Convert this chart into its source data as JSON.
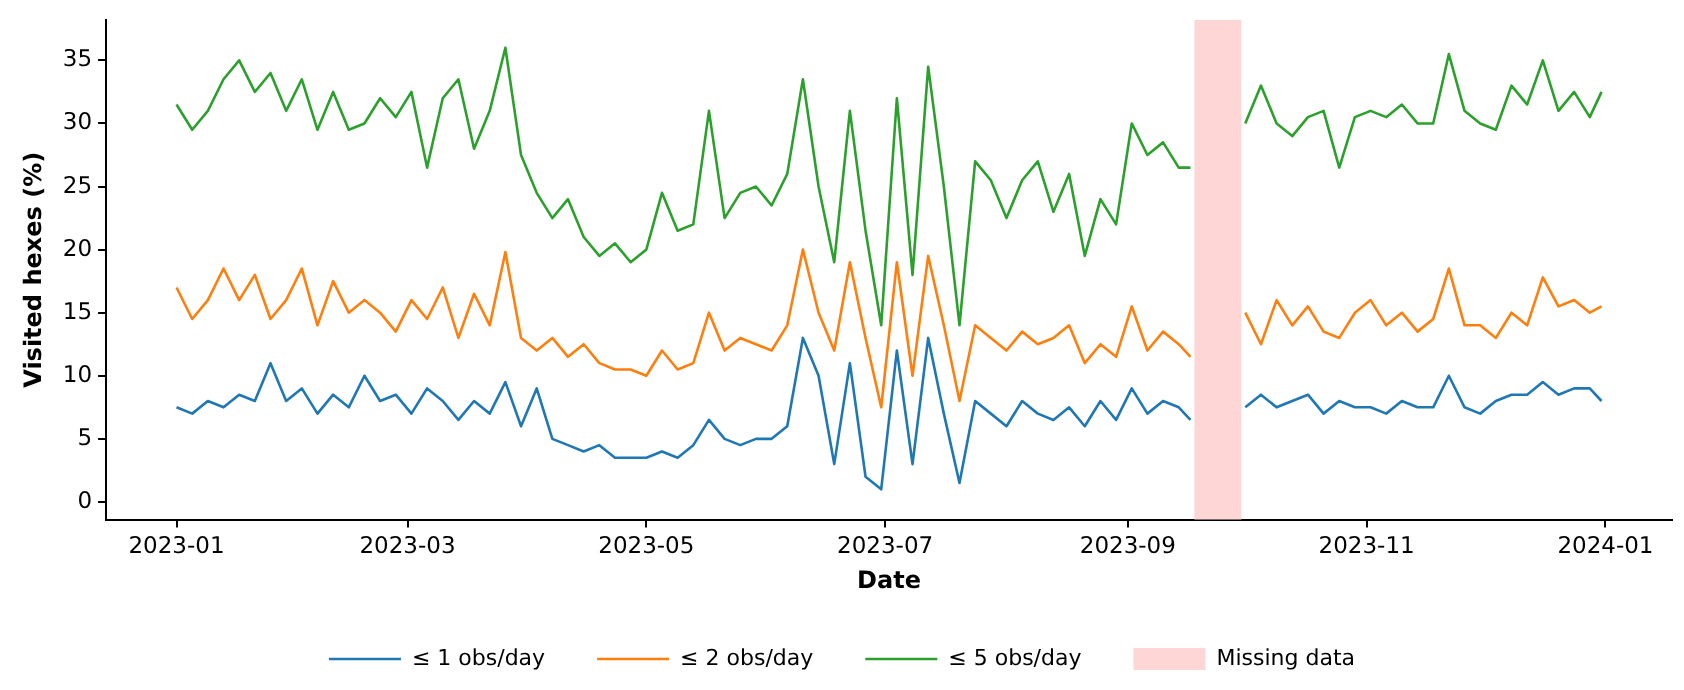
{
  "chart_data": {
    "type": "line",
    "xlabel": "Date",
    "ylabel": "Visited hexes (%)",
    "x": [
      "2023-01-01",
      "2023-01-05",
      "2023-01-09",
      "2023-01-13",
      "2023-01-17",
      "2023-01-21",
      "2023-01-25",
      "2023-01-29",
      "2023-02-02",
      "2023-02-06",
      "2023-02-10",
      "2023-02-14",
      "2023-02-18",
      "2023-02-22",
      "2023-02-26",
      "2023-03-02",
      "2023-03-06",
      "2023-03-10",
      "2023-03-14",
      "2023-03-18",
      "2023-03-22",
      "2023-03-26",
      "2023-03-30",
      "2023-04-03",
      "2023-04-07",
      "2023-04-11",
      "2023-04-15",
      "2023-04-19",
      "2023-04-23",
      "2023-04-27",
      "2023-05-01",
      "2023-05-05",
      "2023-05-09",
      "2023-05-13",
      "2023-05-17",
      "2023-05-21",
      "2023-05-25",
      "2023-05-29",
      "2023-06-02",
      "2023-06-06",
      "2023-06-10",
      "2023-06-14",
      "2023-06-18",
      "2023-06-22",
      "2023-06-26",
      "2023-06-30",
      "2023-07-04",
      "2023-07-08",
      "2023-07-12",
      "2023-07-16",
      "2023-07-20",
      "2023-07-24",
      "2023-07-28",
      "2023-08-01",
      "2023-08-05",
      "2023-08-09",
      "2023-08-13",
      "2023-08-17",
      "2023-08-21",
      "2023-08-25",
      "2023-08-29",
      "2023-09-02",
      "2023-09-06",
      "2023-09-10",
      "2023-09-14",
      "2023-09-17",
      "2023-09-24",
      "2023-10-01",
      "2023-10-05",
      "2023-10-09",
      "2023-10-13",
      "2023-10-17",
      "2023-10-21",
      "2023-10-25",
      "2023-10-29",
      "2023-11-02",
      "2023-11-06",
      "2023-11-10",
      "2023-11-14",
      "2023-11-18",
      "2023-11-22",
      "2023-11-26",
      "2023-11-30",
      "2023-12-04",
      "2023-12-08",
      "2023-12-12",
      "2023-12-16",
      "2023-12-20",
      "2023-12-24",
      "2023-12-28",
      "2023-12-31"
    ],
    "series": [
      {
        "name": "≤ 1 obs/day",
        "color": "#1f77b4",
        "values": [
          7.5,
          7,
          8,
          7.5,
          8.5,
          8,
          11,
          8,
          9,
          7,
          8.5,
          7.5,
          10,
          8,
          8.5,
          7,
          9,
          8,
          6.5,
          8,
          7,
          9.5,
          6,
          9,
          5,
          4.5,
          4,
          4.5,
          3.5,
          3.5,
          3.5,
          4,
          3.5,
          4.5,
          6.5,
          5,
          4.5,
          5,
          5,
          6,
          13,
          10,
          3,
          11,
          2,
          1,
          12,
          3,
          13,
          7,
          1.5,
          8,
          7,
          6,
          8,
          7,
          6.5,
          7.5,
          6,
          8,
          6.5,
          9,
          7,
          8,
          7.5,
          6.5,
          null,
          7.5,
          8.5,
          7.5,
          8,
          8.5,
          7,
          8,
          7.5,
          7.5,
          7,
          8,
          7.5,
          7.5,
          10,
          7.5,
          7,
          8,
          8.5,
          8.5,
          9.5,
          8.5,
          9,
          9,
          8
        ]
      },
      {
        "name": "≤ 2 obs/day",
        "color": "#ff7f0e",
        "values": [
          17,
          14.5,
          16,
          18.5,
          16,
          18,
          14.5,
          16,
          18.5,
          14,
          17.5,
          15,
          16,
          15,
          13.5,
          16,
          14.5,
          17,
          13,
          16.5,
          14,
          19.8,
          13,
          12,
          13,
          11.5,
          12.5,
          11,
          10.5,
          10.5,
          10,
          12,
          10.5,
          11,
          15,
          12,
          13,
          12.5,
          12,
          14,
          20,
          15,
          12,
          19,
          13,
          7.5,
          19,
          10,
          19.5,
          14,
          8,
          14,
          13,
          12,
          13.5,
          12.5,
          13,
          14,
          11,
          12.5,
          11.5,
          15.5,
          12,
          13.5,
          12.5,
          11.5,
          null,
          15,
          12.5,
          16,
          14,
          15.5,
          13.5,
          13,
          15,
          16,
          14,
          15,
          13.5,
          14.5,
          18.5,
          14,
          14,
          13,
          15,
          14,
          17.8,
          15.5,
          16,
          15,
          15.5
        ]
      },
      {
        "name": "≤ 5 obs/day",
        "color": "#2ca02c",
        "values": [
          31.5,
          29.5,
          31,
          33.5,
          35,
          32.5,
          34,
          31,
          33.5,
          29.5,
          32.5,
          29.5,
          30,
          32,
          30.5,
          32.5,
          26.5,
          32,
          33.5,
          28,
          31,
          36,
          27.5,
          24.5,
          22.5,
          24,
          21,
          19.5,
          20.5,
          19,
          20,
          24.5,
          21.5,
          22,
          31,
          22.5,
          24.5,
          25,
          23.5,
          26,
          33.5,
          25,
          19,
          31,
          21.5,
          14,
          32,
          18,
          34.5,
          25,
          14,
          27,
          25.5,
          22.5,
          25.5,
          27,
          23,
          26,
          19.5,
          24,
          22,
          30,
          27.5,
          28.5,
          26.5,
          26.5,
          null,
          30,
          33,
          30,
          29,
          30.5,
          31,
          26.5,
          30.5,
          31,
          30.5,
          31.5,
          30,
          30,
          35.5,
          31,
          30,
          29.5,
          33,
          31.5,
          35,
          31,
          32.5,
          30.5,
          32.5
        ]
      }
    ],
    "bands": [
      {
        "axis": "x",
        "from": "2023-09-18",
        "to": "2023-09-30",
        "label": "Missing data",
        "color": "#ffd6d6"
      }
    ],
    "xlim": [
      "2022-12-14",
      "2024-01-18"
    ],
    "xticks": [
      {
        "value": "2023-01-01",
        "label": "2023-01"
      },
      {
        "value": "2023-03-01",
        "label": "2023-03"
      },
      {
        "value": "2023-05-01",
        "label": "2023-05"
      },
      {
        "value": "2023-07-01",
        "label": "2023-07"
      },
      {
        "value": "2023-09-01",
        "label": "2023-09"
      },
      {
        "value": "2023-11-01",
        "label": "2023-11"
      },
      {
        "value": "2024-01-01",
        "label": "2024-01"
      }
    ],
    "ylim": [
      -1.4,
      38.2
    ],
    "yticks": [
      0,
      5,
      10,
      15,
      20,
      25,
      30,
      35
    ],
    "grid": false,
    "legend": "bottom",
    "marker": "none",
    "line_style": "solid"
  }
}
